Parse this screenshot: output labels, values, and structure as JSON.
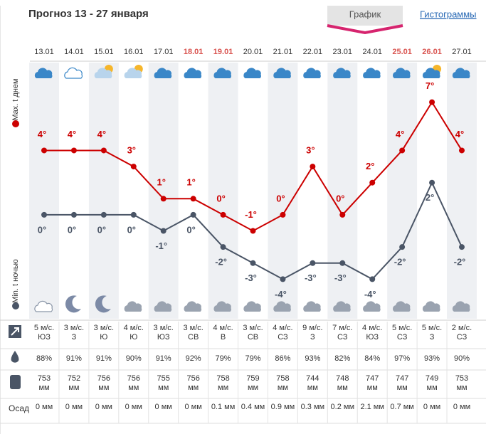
{
  "header": {
    "title": "Прогноз 13 - 27 января",
    "tabs": [
      "График",
      "Гистограммы"
    ]
  },
  "chart_data": {
    "type": "line",
    "categories": [
      "13.01",
      "14.01",
      "15.01",
      "16.01",
      "17.01",
      "18.01",
      "19.01",
      "20.01",
      "21.01",
      "22.01",
      "23.01",
      "24.01",
      "25.01",
      "26.01",
      "27.01"
    ],
    "weekend": [
      false,
      false,
      false,
      false,
      false,
      true,
      true,
      false,
      false,
      false,
      false,
      false,
      true,
      true,
      false
    ],
    "weekend_color": "#d9534f",
    "series": [
      {
        "name": "Max. t днем",
        "color": "#cc0000",
        "values": [
          4,
          4,
          4,
          3,
          1,
          1,
          0,
          -1,
          0,
          3,
          0,
          2,
          4,
          7,
          4
        ],
        "value_labels": [
          "4°",
          "4°",
          "4°",
          "3°",
          "1°",
          "1°",
          "0°",
          "-1°",
          "0°",
          "3°",
          "0°",
          "2°",
          "4°",
          "7°",
          "4°"
        ]
      },
      {
        "name": "Min. t ночью",
        "color": "#4a5566",
        "values": [
          0,
          0,
          0,
          0,
          -1,
          0,
          -2,
          -3,
          -4,
          -3,
          -3,
          -4,
          -2,
          2,
          -2
        ],
        "value_labels": [
          "0°",
          "0°",
          "0°",
          "0°",
          "-1°",
          "0°",
          "-2°",
          "-3°",
          "-4°",
          "-3°",
          "-3°",
          "-4°",
          "-2°",
          "2°",
          "-2°"
        ]
      }
    ],
    "ylim": [
      -5,
      8
    ]
  },
  "table": {
    "precip_label": "Осад",
    "wind_speed": [
      "5 м/с.",
      "3 м/с.",
      "3 м/с.",
      "4 м/с.",
      "3 м/с.",
      "3 м/с.",
      "4 м/с.",
      "3 м/с.",
      "4 м/с.",
      "9 м/с.",
      "7 м/с.",
      "4 м/с.",
      "5 м/с.",
      "5 м/с.",
      "2 м/с."
    ],
    "wind_dir": [
      "ЮЗ",
      "З",
      "Ю",
      "Ю",
      "ЮЗ",
      "СВ",
      "В",
      "СВ",
      "СЗ",
      "З",
      "СЗ",
      "ЮЗ",
      "СЗ",
      "З",
      "СЗ"
    ],
    "humidity": [
      "88%",
      "91%",
      "91%",
      "90%",
      "91%",
      "92%",
      "79%",
      "79%",
      "86%",
      "93%",
      "82%",
      "84%",
      "97%",
      "93%",
      "90%"
    ],
    "pressure": [
      "753 мм",
      "752 мм",
      "756 мм",
      "756 мм",
      "755 мм",
      "756 мм",
      "758 мм",
      "759 мм",
      "758 мм",
      "744 мм",
      "748 мм",
      "747 мм",
      "747 мм",
      "749 мм",
      "753 мм"
    ],
    "precip": [
      "0 мм",
      "0 мм",
      "0 мм",
      "0 мм",
      "0 мм",
      "0 мм",
      "0.1 мм",
      "0.4 мм",
      "0.9 мм",
      "0.3 мм",
      "0.2 мм",
      "2.1 мм",
      "0.7 мм",
      "0 мм",
      "0 мм"
    ]
  }
}
